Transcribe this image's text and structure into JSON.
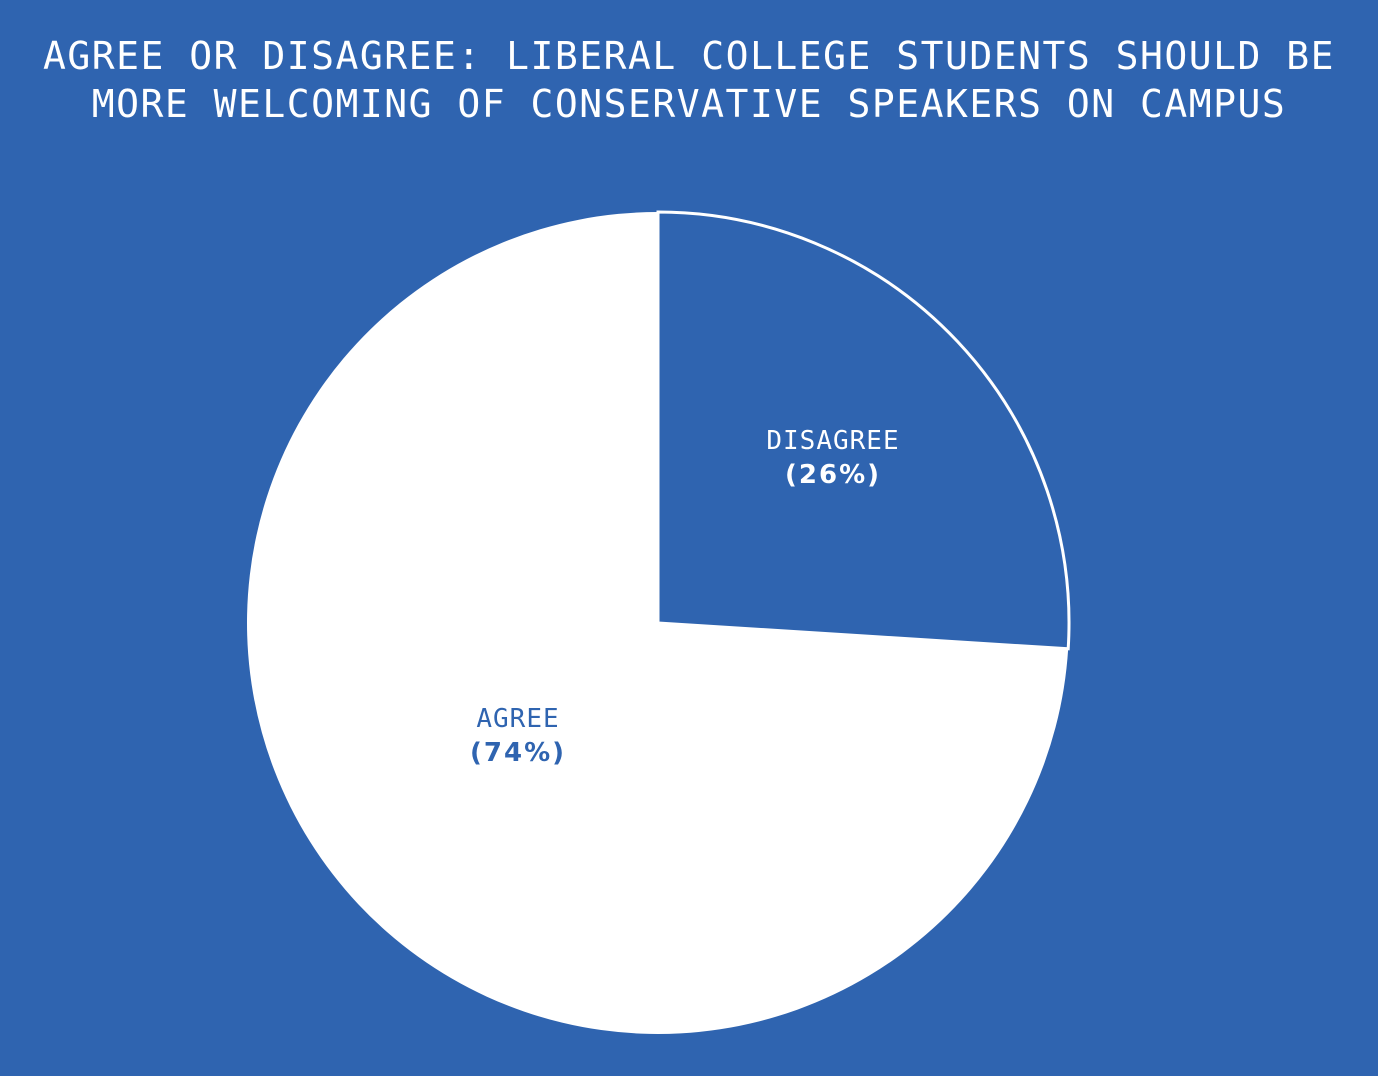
{
  "title": {
    "line1": "AGREE OR DISAGREE: LIBERAL COLLEGE STUDENTS SHOULD BE",
    "line2": "MORE WELCOMING OF CONSERVATIVE SPEAKERS ON CAMPUS"
  },
  "colors": {
    "background": "#2f64b0",
    "agree": "#ffffff",
    "disagree": "#2f64b0",
    "outline": "#ffffff"
  },
  "labels": {
    "disagree": {
      "name": "DISAGREE",
      "pct": "(26%)"
    },
    "agree": {
      "name": "AGREE",
      "pct": "(74%)"
    }
  },
  "chart_data": {
    "type": "pie",
    "title": "AGREE OR DISAGREE: LIBERAL COLLEGE STUDENTS SHOULD BE MORE WELCOMING OF CONSERVATIVE SPEAKERS ON CAMPUS",
    "categories": [
      "Disagree",
      "Agree"
    ],
    "values": [
      26,
      74
    ],
    "unit": "%",
    "start_angle": "12 o'clock, clockwise",
    "legend": "none (direct labels)"
  }
}
